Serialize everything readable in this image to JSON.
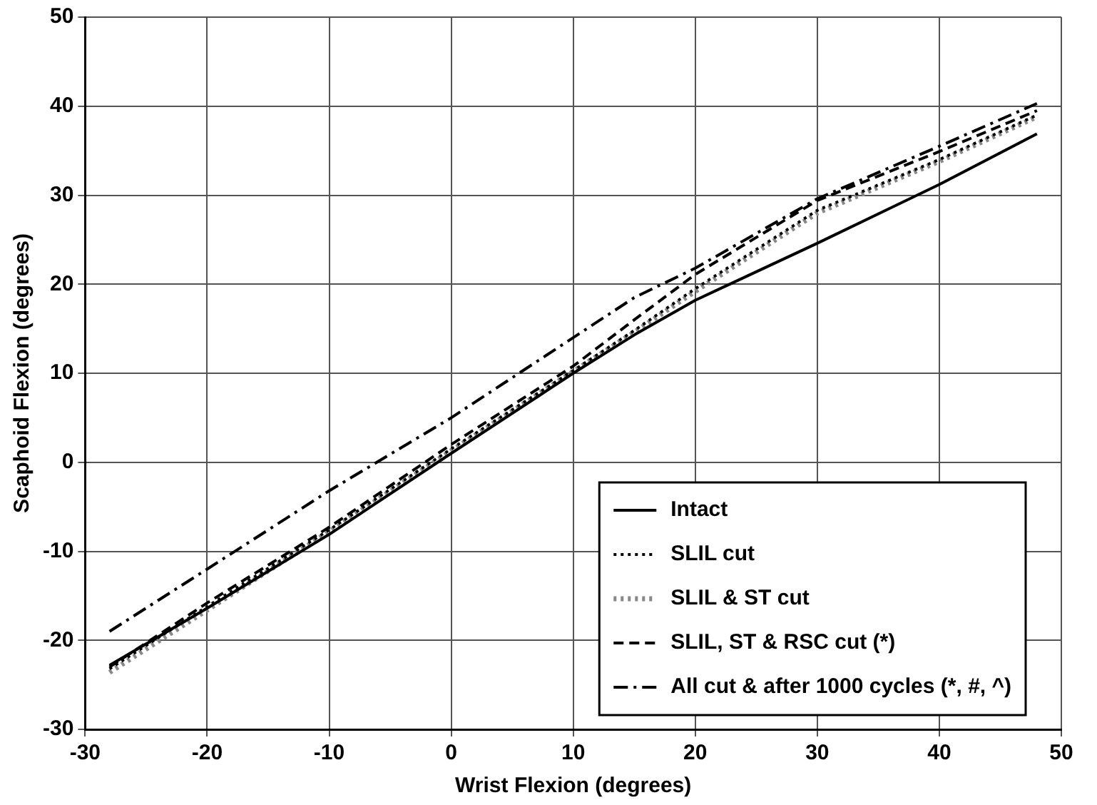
{
  "chart_data": {
    "type": "line",
    "xlabel": "Wrist Flexion (degrees)",
    "ylabel": "Scaphoid Flexion (degrees)",
    "xlim": [
      -30,
      50
    ],
    "xticks": [
      -30,
      -20,
      -10,
      0,
      10,
      20,
      30,
      40,
      50
    ],
    "ylim": [
      -30,
      50
    ],
    "yticks": [
      -30,
      -20,
      -10,
      0,
      10,
      20,
      30,
      40,
      50
    ],
    "grid": true,
    "legend": "bottom right",
    "marker": "none",
    "x": [
      -28,
      -20,
      -10,
      0,
      10,
      15,
      20,
      30,
      40,
      48
    ],
    "series": [
      {
        "name": "Intact",
        "color": "#000000",
        "line_style": "solid",
        "values": [
          -22.8,
          -16.4,
          -8.1,
          1,
          10,
          14.3,
          18.2,
          24.6,
          31.2,
          36.9
        ]
      },
      {
        "name": "SLIL cut",
        "color": "#000000",
        "line_style": "dotted",
        "values": [
          -23.2,
          -16.2,
          -7.6,
          1.5,
          10.3,
          14.8,
          19.5,
          28.3,
          34,
          39
        ]
      },
      {
        "name": "SLIL & ST cut",
        "color": "#888888",
        "line_style": "dotted",
        "values": [
          -23.6,
          -16.6,
          -7.8,
          1.3,
          10.2,
          14.6,
          19.2,
          28,
          33.8,
          38.8
        ]
      },
      {
        "name": "SLIL, ST & RSC cut (*)",
        "color": "#000000",
        "line_style": "dashed",
        "values": [
          -23,
          -15.8,
          -7.3,
          2,
          10.8,
          16,
          21.1,
          29.4,
          34.9,
          39.5
        ]
      },
      {
        "name": "All cut & after 1000 cycles (*, #, ^)",
        "color": "#000000",
        "line_style": "dashdot",
        "values": [
          -19,
          -12,
          -3.2,
          5,
          14,
          18.5,
          21.8,
          29.6,
          35.5,
          40.3
        ]
      }
    ]
  }
}
